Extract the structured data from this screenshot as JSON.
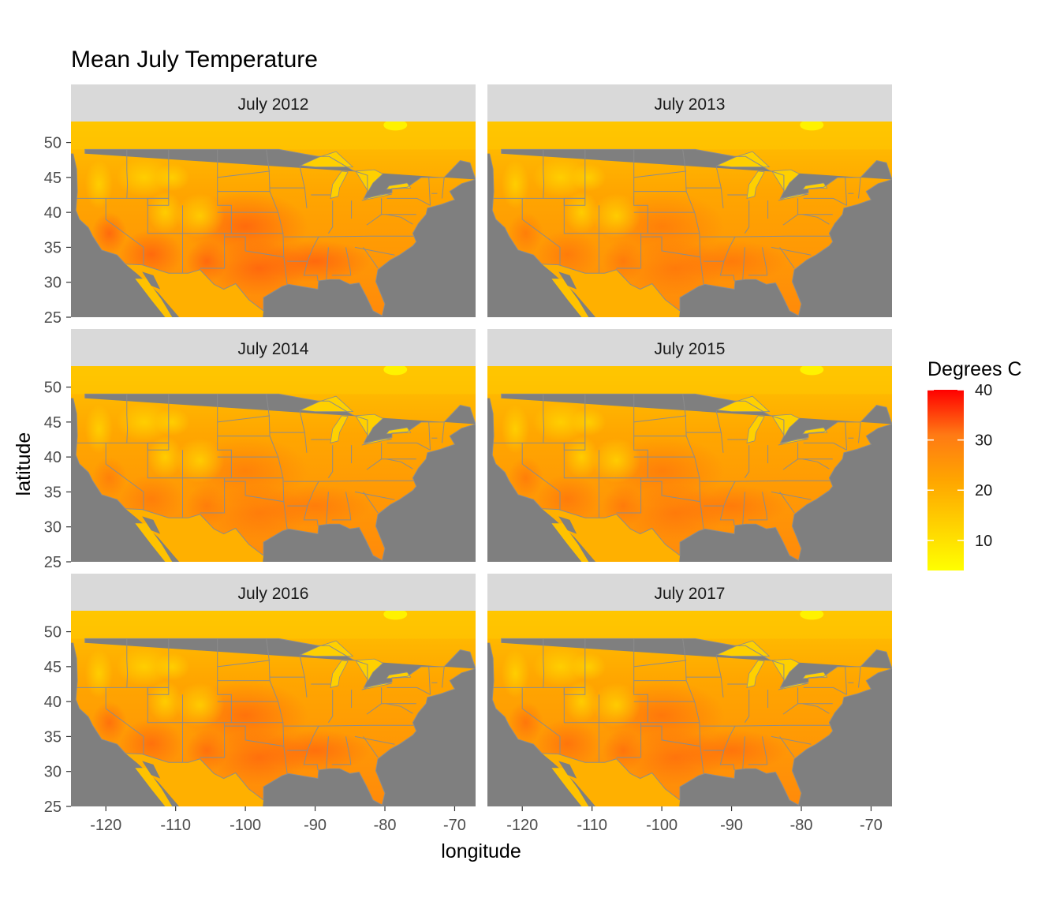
{
  "chart_data": {
    "type": "heatmap",
    "title": "Mean July Temperature",
    "xlabel": "longitude",
    "ylabel": "latitude",
    "xlim": [
      -125,
      -67
    ],
    "ylim": [
      25,
      53
    ],
    "x_ticks": [
      -120,
      -110,
      -100,
      -90,
      -80,
      -70
    ],
    "y_ticks": [
      25,
      30,
      35,
      40,
      45,
      50
    ],
    "panels": [
      {
        "label": "July 2012"
      },
      {
        "label": "July 2013"
      },
      {
        "label": "July 2014"
      },
      {
        "label": "July 2015"
      },
      {
        "label": "July 2016"
      },
      {
        "label": "July 2017"
      }
    ],
    "legend": {
      "title": "Degrees C",
      "breaks": [
        10,
        20,
        30,
        40
      ],
      "range": [
        4,
        40
      ],
      "colors": [
        "#ffff00",
        "#ffd200",
        "#ffa500",
        "#ff7a14",
        "#ff0000"
      ]
    },
    "colors": {
      "ocean": "#7f7f7f",
      "strip": "#d9d9d9",
      "border_line": "#8c8c8c",
      "canada_cool": "#ffc800",
      "heat_mid": "#ff9a10",
      "heat_hot": "#ff6a10"
    }
  }
}
